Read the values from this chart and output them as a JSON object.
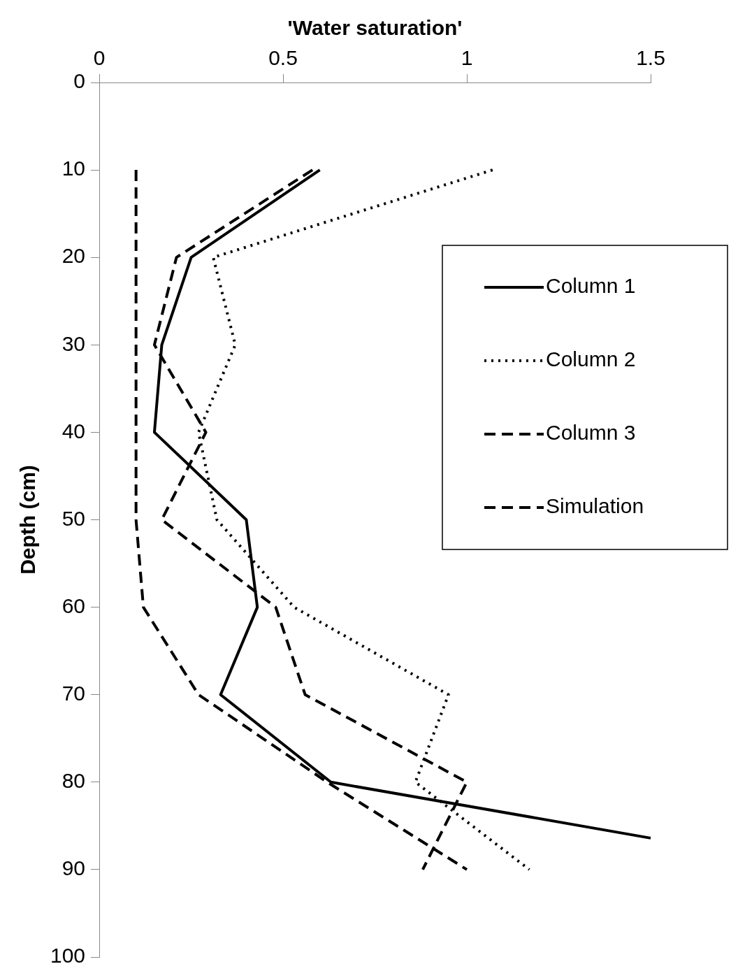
{
  "chart_data": {
    "type": "line",
    "xlabel": "'Water saturation'",
    "ylabel": "Depth (cm)",
    "xlim": [
      0,
      1.5
    ],
    "xticks": [
      0,
      0.5,
      1,
      1.5
    ],
    "ylim": [
      100,
      0
    ],
    "yticks": [
      0,
      10,
      20,
      30,
      40,
      50,
      60,
      70,
      80,
      90,
      100
    ],
    "grid": false,
    "legend": "right",
    "marker": "none",
    "series": [
      {
        "name": "Column 1",
        "color": "#000000",
        "line_style": "solid",
        "x": [
          0.6,
          0.25,
          0.17,
          0.15,
          0.4,
          0.43,
          0.33,
          0.63,
          1.5
        ],
        "values": [
          10,
          20,
          30,
          40,
          50,
          60,
          70,
          80,
          86.4
        ]
      },
      {
        "name": "Column 2",
        "color": "#000000",
        "line_style": "dotted",
        "x": [
          1.07,
          0.31,
          0.37,
          0.27,
          0.32,
          0.53,
          0.95,
          0.86,
          1.17
        ],
        "values": [
          10,
          20,
          30,
          40,
          50,
          60,
          70,
          80,
          90
        ]
      },
      {
        "name": "Column 3",
        "color": "#000000",
        "line_style": "dashed",
        "x": [
          0.58,
          0.21,
          0.15,
          0.29,
          0.17,
          0.48,
          0.56,
          1.0,
          0.88
        ],
        "values": [
          10,
          20,
          30,
          40,
          50,
          60,
          70,
          80,
          90
        ]
      },
      {
        "name": "Simulation",
        "color": "#000000",
        "line_style": "dashed",
        "x": [
          0.1,
          0.1,
          0.1,
          0.1,
          0.1,
          0.12,
          0.27,
          0.62,
          1.0
        ],
        "values": [
          10,
          20,
          30,
          40,
          50,
          60,
          70,
          80,
          90
        ]
      }
    ]
  }
}
